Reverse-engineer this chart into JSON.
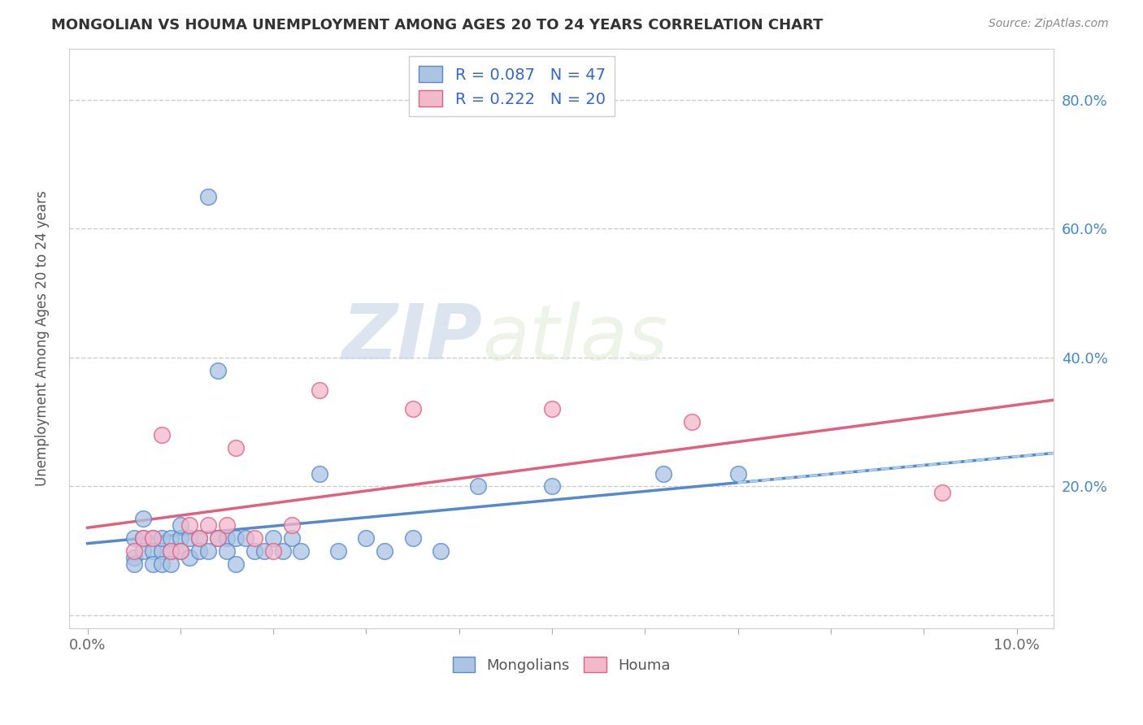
{
  "title": "MONGOLIAN VS HOUMA UNEMPLOYMENT AMONG AGES 20 TO 24 YEARS CORRELATION CHART",
  "source": "Source: ZipAtlas.com",
  "ylabel": "Unemployment Among Ages 20 to 24 years",
  "xlim": [
    -0.002,
    0.104
  ],
  "ylim": [
    -0.02,
    0.88
  ],
  "xticks": [
    0.0,
    0.01,
    0.02,
    0.03,
    0.04,
    0.05,
    0.06,
    0.07,
    0.08,
    0.09,
    0.1
  ],
  "xticklabels_show": [
    "0.0%",
    "",
    "",
    "",
    "",
    "",
    "",
    "",
    "",
    "",
    "10.0%"
  ],
  "yticks": [
    0.0,
    0.2,
    0.4,
    0.6,
    0.8
  ],
  "yticklabels_right": [
    "",
    "20.0%",
    "40.0%",
    "60.0%",
    "80.0%"
  ],
  "mongolian_color": "#aac4e2",
  "houma_color": "#f2b8cc",
  "mongolian_edge": "#5588cc",
  "houma_edge": "#e06080",
  "trend_mongolian_color": "#5588cc",
  "trend_houma_color": "#e06080",
  "legend_line1": "R = 0.087   N = 47",
  "legend_line2": "R = 0.222   N = 20",
  "mongolian_x": [
    0.005,
    0.005,
    0.005,
    0.006,
    0.006,
    0.006,
    0.007,
    0.007,
    0.007,
    0.008,
    0.008,
    0.008,
    0.009,
    0.009,
    0.009,
    0.01,
    0.01,
    0.01,
    0.011,
    0.011,
    0.012,
    0.012,
    0.013,
    0.013,
    0.014,
    0.014,
    0.015,
    0.015,
    0.016,
    0.016,
    0.017,
    0.018,
    0.019,
    0.02,
    0.021,
    0.022,
    0.023,
    0.025,
    0.027,
    0.03,
    0.032,
    0.035,
    0.038,
    0.042,
    0.05,
    0.062,
    0.07
  ],
  "mongolian_y": [
    0.09,
    0.12,
    0.08,
    0.12,
    0.15,
    0.1,
    0.12,
    0.1,
    0.08,
    0.1,
    0.12,
    0.08,
    0.1,
    0.12,
    0.08,
    0.12,
    0.1,
    0.14,
    0.12,
    0.09,
    0.12,
    0.1,
    0.65,
    0.1,
    0.38,
    0.12,
    0.12,
    0.1,
    0.12,
    0.08,
    0.12,
    0.1,
    0.1,
    0.12,
    0.1,
    0.12,
    0.1,
    0.22,
    0.1,
    0.12,
    0.1,
    0.12,
    0.1,
    0.2,
    0.2,
    0.22,
    0.22
  ],
  "houma_x": [
    0.005,
    0.006,
    0.007,
    0.008,
    0.009,
    0.01,
    0.011,
    0.012,
    0.013,
    0.014,
    0.015,
    0.016,
    0.018,
    0.02,
    0.022,
    0.025,
    0.035,
    0.05,
    0.065,
    0.092
  ],
  "houma_y": [
    0.1,
    0.12,
    0.12,
    0.28,
    0.1,
    0.1,
    0.14,
    0.12,
    0.14,
    0.12,
    0.14,
    0.26,
    0.12,
    0.1,
    0.14,
    0.35,
    0.32,
    0.32,
    0.3,
    0.19
  ],
  "watermark_zip": "ZIP",
  "watermark_atlas": "atlas",
  "background_color": "#ffffff",
  "grid_color": "#cccccc",
  "tick_label_color_right": "#4488cc",
  "legend_color": "#3366cc",
  "bottom_legend_mongolians": "Mongolians",
  "bottom_legend_houma": "Houma"
}
